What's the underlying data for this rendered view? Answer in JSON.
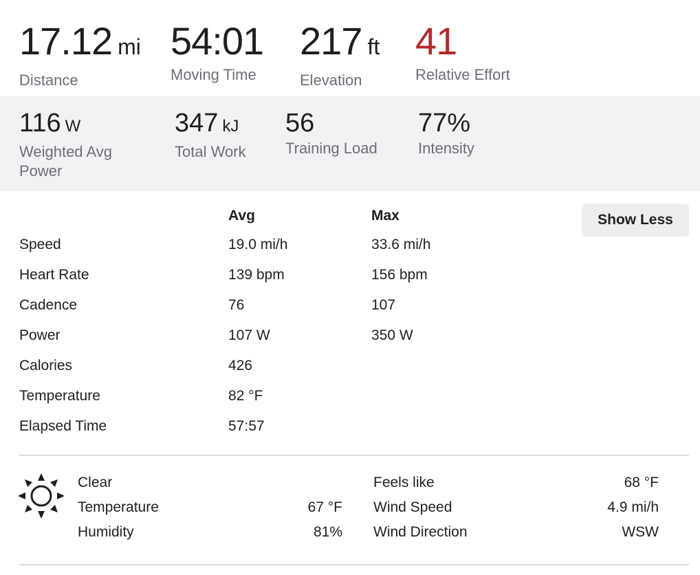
{
  "primary_stats": [
    {
      "value": "17.12",
      "unit": "mi",
      "label": "Distance"
    },
    {
      "value": "54:01",
      "unit": "",
      "label": "Moving Time"
    },
    {
      "value": "217",
      "unit": "ft",
      "label": "Elevation"
    },
    {
      "value": "41",
      "unit": "",
      "label": "Relative Effort"
    }
  ],
  "secondary_stats": [
    {
      "value": "116",
      "unit": "W",
      "label_line1": "Weighted Avg",
      "label_line2": "Power"
    },
    {
      "value": "347",
      "unit": "kJ",
      "label_line1": "Total Work",
      "label_line2": ""
    },
    {
      "value": "56",
      "unit": "",
      "label_line1": "Training Load",
      "label_line2": ""
    },
    {
      "value": "77%",
      "unit": "",
      "label_line1": "Intensity",
      "label_line2": ""
    }
  ],
  "stats_table": {
    "avg_header": "Avg",
    "max_header": "Max",
    "show_less_label": "Show Less",
    "rows": [
      {
        "label": "Speed",
        "avg": "19.0 mi/h",
        "max": "33.6 mi/h"
      },
      {
        "label": "Heart Rate",
        "avg": "139 bpm",
        "max": "156 bpm"
      },
      {
        "label": "Cadence",
        "avg": "76",
        "max": "107"
      },
      {
        "label": "Power",
        "avg": "107 W",
        "max": "350 W"
      },
      {
        "label": "Calories",
        "avg": "426",
        "max": ""
      },
      {
        "label": "Temperature",
        "avg": "82 °F",
        "max": ""
      },
      {
        "label": "Elapsed Time",
        "avg": "57:57",
        "max": ""
      }
    ]
  },
  "weather": {
    "icon": "sun-icon",
    "condition": "Clear",
    "temperature_label": "Temperature",
    "temperature_value": "67 °F",
    "humidity_label": "Humidity",
    "humidity_value": "81%",
    "feels_like_label": "Feels like",
    "feels_like_value": "68 °F",
    "wind_speed_label": "Wind Speed",
    "wind_speed_value": "4.9 mi/h",
    "wind_direction_label": "Wind Direction",
    "wind_direction_value": "WSW"
  },
  "colors": {
    "effort_accent": "#b02a2a",
    "secondary_band_bg": "#f2f2f5",
    "label_gray": "#6d6d78"
  }
}
